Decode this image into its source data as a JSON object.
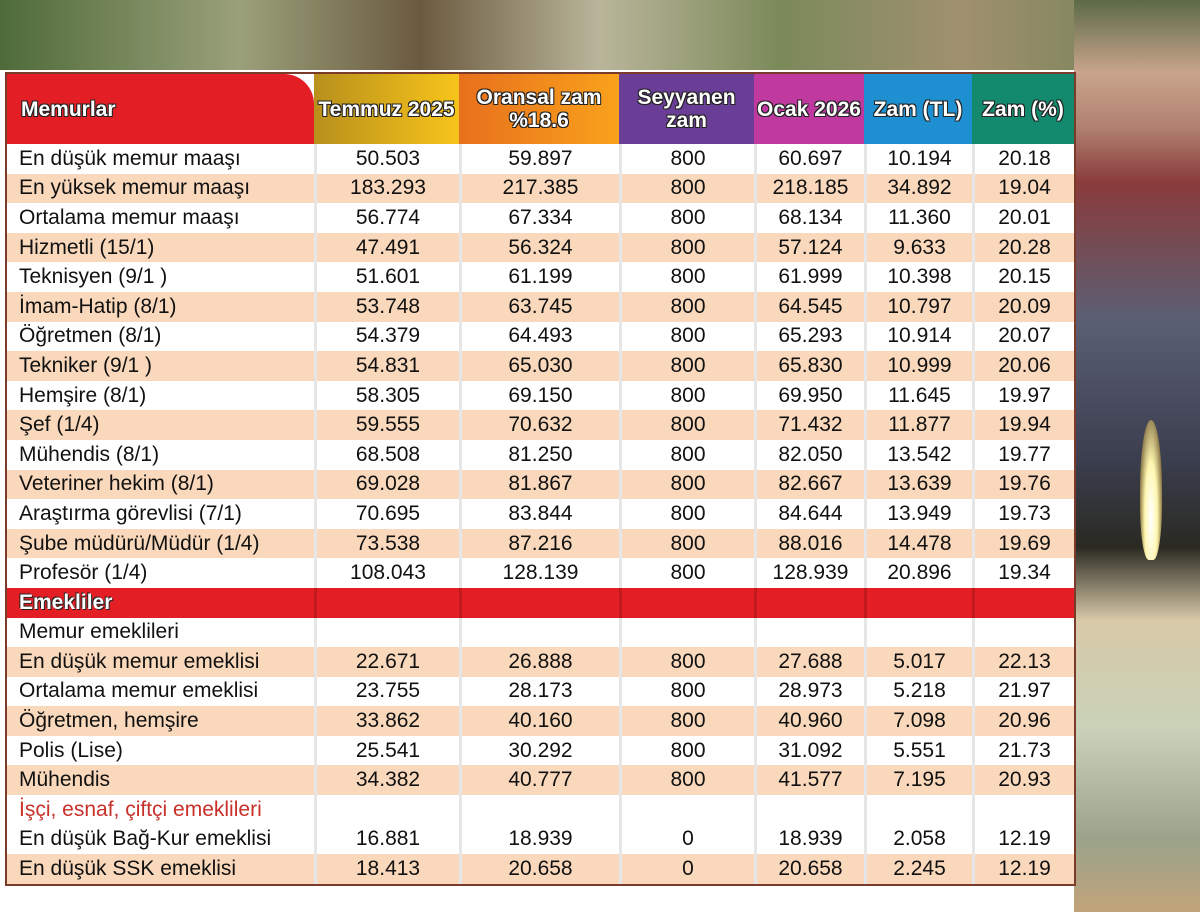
{
  "header": {
    "label": "Memurlar",
    "columns": [
      "Temmuz 2025",
      "Oransal zam %18.6",
      "Seyyanen zam",
      "Ocak 2026",
      "Zam (TL)",
      "Zam (%)"
    ],
    "colors": [
      "#e31e24",
      "#e8b021",
      "#f08a1c",
      "#6a3d96",
      "#c0399e",
      "#1e8fd0",
      "#138a6e"
    ]
  },
  "rows": [
    {
      "label": "En düşük memur maaşı",
      "values": [
        "50.503",
        "59.897",
        "800",
        "60.697",
        "10.194",
        "20.18"
      ]
    },
    {
      "label": "En yüksek memur maaşı",
      "values": [
        "183.293",
        "217.385",
        "800",
        "218.185",
        "34.892",
        "19.04"
      ]
    },
    {
      "label": "Ortalama memur maaşı",
      "values": [
        "56.774",
        "67.334",
        "800",
        "68.134",
        "11.360",
        "20.01"
      ]
    },
    {
      "label": "Hizmetli (15/1)",
      "values": [
        "47.491",
        "56.324",
        "800",
        "57.124",
        "9.633",
        "20.28"
      ]
    },
    {
      "label": "Teknisyen (9/1 )",
      "values": [
        "51.601",
        "61.199",
        "800",
        "61.999",
        "10.398",
        "20.15"
      ]
    },
    {
      "label": "İmam-Hatip (8/1)",
      "values": [
        "53.748",
        "63.745",
        "800",
        "64.545",
        "10.797",
        "20.09"
      ]
    },
    {
      "label": "Öğretmen (8/1)",
      "values": [
        "54.379",
        "64.493",
        "800",
        "65.293",
        "10.914",
        "20.07"
      ]
    },
    {
      "label": "Tekniker (9/1 )",
      "values": [
        "54.831",
        "65.030",
        "800",
        "65.830",
        "10.999",
        "20.06"
      ]
    },
    {
      "label": "Hemşire (8/1)",
      "values": [
        "58.305",
        "69.150",
        "800",
        "69.950",
        "11.645",
        "19.97"
      ]
    },
    {
      "label": "Şef (1/4)",
      "values": [
        "59.555",
        "70.632",
        "800",
        "71.432",
        "11.877",
        "19.94"
      ]
    },
    {
      "label": "Mühendis (8/1)",
      "values": [
        "68.508",
        "81.250",
        "800",
        "82.050",
        "13.542",
        "19.77"
      ]
    },
    {
      "label": "Veteriner hekim (8/1)",
      "values": [
        "69.028",
        "81.867",
        "800",
        "82.667",
        "13.639",
        "19.76"
      ]
    },
    {
      "label": "Araştırma görevlisi (7/1)",
      "values": [
        "70.695",
        "83.844",
        "800",
        "84.644",
        "13.949",
        "19.73"
      ]
    },
    {
      "label": "Şube müdürü/Müdür (1/4)",
      "values": [
        "73.538",
        "87.216",
        "800",
        "88.016",
        "14.478",
        "19.69"
      ]
    },
    {
      "label": "Profesör (1/4)",
      "values": [
        "108.043",
        "128.139",
        "800",
        "128.939",
        "20.896",
        "19.34"
      ]
    },
    {
      "label": "Emekliler",
      "type": "section",
      "values": [
        "",
        "",
        "",
        "",
        "",
        ""
      ]
    },
    {
      "label": "Memur emeklileri",
      "type": "sub",
      "values": [
        "",
        "",
        "",
        "",
        "",
        ""
      ]
    },
    {
      "label": "En düşük memur emeklisi",
      "values": [
        "22.671",
        "26.888",
        "800",
        "27.688",
        "5.017",
        "22.13"
      ]
    },
    {
      "label": "Ortalama memur emeklisi",
      "values": [
        "23.755",
        "28.173",
        "800",
        "28.973",
        "5.218",
        "21.97"
      ]
    },
    {
      "label": "Öğretmen, hemşire",
      "values": [
        "33.862",
        "40.160",
        "800",
        "40.960",
        "7.098",
        "20.96"
      ]
    },
    {
      "label": "Polis (Lise)",
      "values": [
        "25.541",
        "30.292",
        "800",
        "31.092",
        "5.551",
        "21.73"
      ]
    },
    {
      "label": "Mühendis",
      "values": [
        "34.382",
        "40.777",
        "800",
        "41.577",
        "7.195",
        "20.93"
      ]
    },
    {
      "label": "İşçi, esnaf, çiftçi emeklileri",
      "type": "sub-red",
      "values": [
        "",
        "",
        "",
        "",
        "",
        ""
      ]
    },
    {
      "label": "En düşük Bağ-Kur emeklisi",
      "values": [
        "16.881",
        "18.939",
        "0",
        "18.939",
        "2.058",
        "12.19"
      ]
    },
    {
      "label": "En düşük SSK emeklisi",
      "values": [
        "18.413",
        "20.658",
        "0",
        "20.658",
        "2.245",
        "12.19"
      ]
    }
  ]
}
